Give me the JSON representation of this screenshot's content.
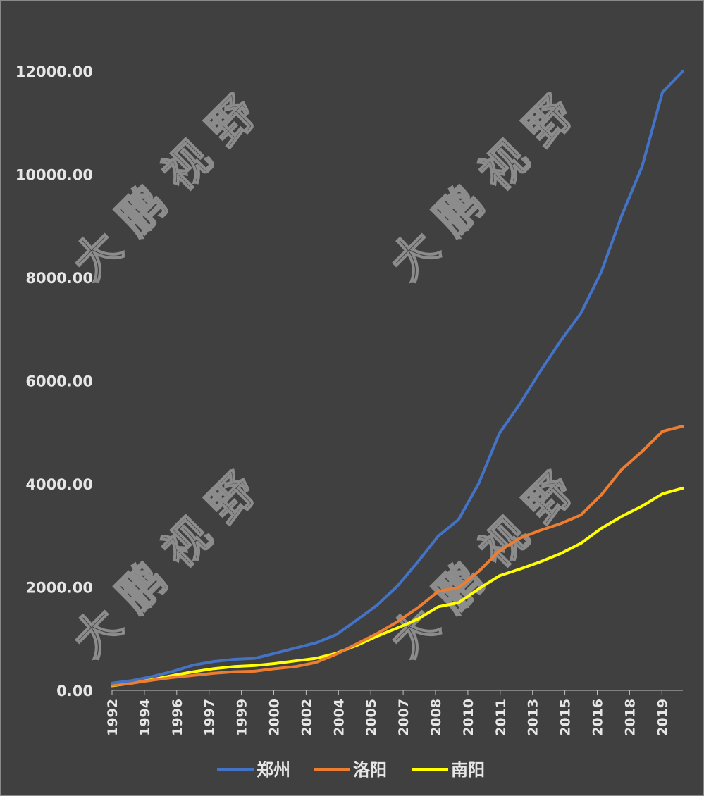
{
  "chart_data": {
    "type": "line",
    "title": "",
    "xlabel": "",
    "ylabel": "",
    "ylim": [
      0,
      12000
    ],
    "yticks": [
      "0.00",
      "2000.00",
      "4000.00",
      "6000.00",
      "8000.00",
      "10000.00",
      "12000.00"
    ],
    "x": [
      1992,
      1993,
      1994,
      1995,
      1996,
      1997,
      1998,
      1999,
      2000,
      2001,
      2002,
      2003,
      2004,
      2005,
      2006,
      2007,
      2008,
      2009,
      2010,
      2011,
      2012,
      2013,
      2014,
      2015,
      2016,
      2017,
      2018,
      2019,
      2020
    ],
    "xtick_labels": [
      "1992",
      "1994",
      "1996",
      "1997",
      "1999",
      "2000",
      "2002",
      "2004",
      "2005",
      "2007",
      "2008",
      "2010",
      "2011",
      "2013",
      "2015",
      "2016",
      "2018",
      "2019"
    ],
    "legend_position": "bottom",
    "series": [
      {
        "name": "郑州",
        "color": "#4472C4",
        "values": [
          140,
          190,
          270,
          370,
          490,
          560,
          600,
          620,
          720,
          820,
          920,
          1080,
          1360,
          1650,
          2020,
          2490,
          2990,
          3310,
          4020,
          4980,
          5550,
          6180,
          6770,
          7310,
          8110,
          9200,
          10150,
          11590,
          12000
        ]
      },
      {
        "name": "洛阳",
        "color": "#ED7D31",
        "values": [
          100,
          140,
          200,
          250,
          290,
          330,
          360,
          370,
          420,
          460,
          540,
          700,
          900,
          1100,
          1330,
          1600,
          1920,
          1990,
          2310,
          2700,
          2950,
          3100,
          3230,
          3400,
          3790,
          4280,
          4630,
          5020,
          5120
        ]
      },
      {
        "name": "南阳",
        "color": "#FFFF00",
        "values": [
          90,
          140,
          210,
          290,
          360,
          420,
          460,
          480,
          520,
          570,
          620,
          720,
          870,
          1050,
          1210,
          1380,
          1620,
          1700,
          1970,
          2220,
          2350,
          2490,
          2650,
          2850,
          3140,
          3370,
          3570,
          3810,
          3920
        ]
      }
    ]
  },
  "watermark": {
    "text": "大鹏视野"
  }
}
